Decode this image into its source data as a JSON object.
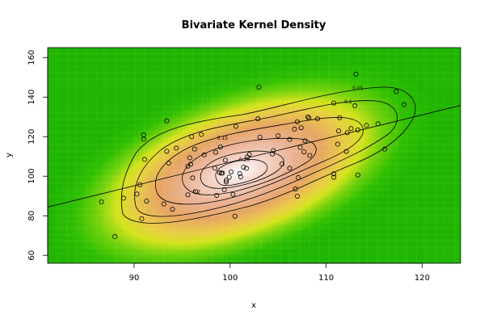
{
  "chart_data": {
    "type": "scatter",
    "title": "Bivariate Kernel Density",
    "xlabel": "x",
    "ylabel": "y",
    "xlim": [
      81,
      124
    ],
    "ylim": [
      56,
      165
    ],
    "x_ticks": [
      90,
      100,
      110,
      120
    ],
    "y_ticks": [
      60,
      80,
      100,
      120,
      140,
      160
    ],
    "grid": false,
    "regression_line": {
      "x": [
        81,
        124
      ],
      "y": [
        84.4,
        135.8
      ]
    },
    "contour_labels": [
      {
        "text": "0.05",
        "x": 113.3,
        "y": 144.5
      },
      {
        "text": "0.1",
        "x": 112.3,
        "y": 137.6
      },
      {
        "text": "0.15",
        "x": 99.2,
        "y": 119.3
      },
      {
        "text": "0.25",
        "x": 101.5,
        "y": 108.4
      },
      {
        "text": "0.2",
        "x": 96.5,
        "y": 92.2
      }
    ],
    "points": [
      {
        "x": 88.0,
        "y": 69.5
      },
      {
        "x": 86.6,
        "y": 87.0
      },
      {
        "x": 88.9,
        "y": 88.9
      },
      {
        "x": 90.3,
        "y": 91.0
      },
      {
        "x": 90.6,
        "y": 95.7
      },
      {
        "x": 90.8,
        "y": 78.5
      },
      {
        "x": 91.0,
        "y": 118.7
      },
      {
        "x": 91.0,
        "y": 120.9
      },
      {
        "x": 91.1,
        "y": 108.5
      },
      {
        "x": 91.3,
        "y": 87.4
      },
      {
        "x": 93.1,
        "y": 86.0
      },
      {
        "x": 93.4,
        "y": 128.0
      },
      {
        "x": 93.4,
        "y": 112.6
      },
      {
        "x": 93.6,
        "y": 106.6
      },
      {
        "x": 94.0,
        "y": 83.3
      },
      {
        "x": 94.4,
        "y": 114.2
      },
      {
        "x": 95.6,
        "y": 105.1
      },
      {
        "x": 95.6,
        "y": 90.6
      },
      {
        "x": 95.8,
        "y": 109.3
      },
      {
        "x": 95.9,
        "y": 106.1
      },
      {
        "x": 96.0,
        "y": 120.0
      },
      {
        "x": 96.1,
        "y": 99.1
      },
      {
        "x": 96.3,
        "y": 113.7
      },
      {
        "x": 96.4,
        "y": 92.2
      },
      {
        "x": 97.0,
        "y": 121.1
      },
      {
        "x": 97.3,
        "y": 110.8
      },
      {
        "x": 98.4,
        "y": 104.1
      },
      {
        "x": 98.5,
        "y": 112.1
      },
      {
        "x": 98.6,
        "y": 90.3
      },
      {
        "x": 98.9,
        "y": 101.8
      },
      {
        "x": 99.1,
        "y": 101.5
      },
      {
        "x": 99.0,
        "y": 114.8
      },
      {
        "x": 99.2,
        "y": 101.6
      },
      {
        "x": 99.4,
        "y": 93.2
      },
      {
        "x": 99.5,
        "y": 108.1
      },
      {
        "x": 99.6,
        "y": 98.0
      },
      {
        "x": 99.6,
        "y": 97.1
      },
      {
        "x": 99.9,
        "y": 99.5
      },
      {
        "x": 100.1,
        "y": 102.2
      },
      {
        "x": 100.3,
        "y": 90.8
      },
      {
        "x": 100.5,
        "y": 79.8
      },
      {
        "x": 100.6,
        "y": 125.2
      },
      {
        "x": 101.0,
        "y": 101.3
      },
      {
        "x": 101.1,
        "y": 99.7
      },
      {
        "x": 101.4,
        "y": 104.6
      },
      {
        "x": 101.7,
        "y": 104.0
      },
      {
        "x": 101.8,
        "y": 109.7
      },
      {
        "x": 102.0,
        "y": 111.0
      },
      {
        "x": 102.9,
        "y": 129.0
      },
      {
        "x": 103.0,
        "y": 145.0
      },
      {
        "x": 103.1,
        "y": 119.7
      },
      {
        "x": 104.4,
        "y": 111.2
      },
      {
        "x": 104.5,
        "y": 113.0
      },
      {
        "x": 105.0,
        "y": 120.5
      },
      {
        "x": 105.4,
        "y": 106.2
      },
      {
        "x": 106.2,
        "y": 104.0
      },
      {
        "x": 106.2,
        "y": 118.6
      },
      {
        "x": 106.7,
        "y": 123.8
      },
      {
        "x": 106.8,
        "y": 93.5
      },
      {
        "x": 107.0,
        "y": 89.9
      },
      {
        "x": 107.1,
        "y": 99.3
      },
      {
        "x": 107.0,
        "y": 127.5
      },
      {
        "x": 107.3,
        "y": 114.6
      },
      {
        "x": 107.4,
        "y": 124.5
      },
      {
        "x": 107.7,
        "y": 112.3
      },
      {
        "x": 107.8,
        "y": 117.9
      },
      {
        "x": 108.1,
        "y": 130.0
      },
      {
        "x": 108.2,
        "y": 129.4
      },
      {
        "x": 108.3,
        "y": 110.5
      },
      {
        "x": 109.1,
        "y": 129.0
      },
      {
        "x": 110.8,
        "y": 101.2
      },
      {
        "x": 110.8,
        "y": 99.5
      },
      {
        "x": 110.8,
        "y": 137.0
      },
      {
        "x": 111.2,
        "y": 116.2
      },
      {
        "x": 111.3,
        "y": 122.9
      },
      {
        "x": 111.4,
        "y": 129.6
      },
      {
        "x": 112.1,
        "y": 112.5
      },
      {
        "x": 112.2,
        "y": 122.0
      },
      {
        "x": 112.6,
        "y": 124.1
      },
      {
        "x": 113.0,
        "y": 135.6
      },
      {
        "x": 113.1,
        "y": 151.6
      },
      {
        "x": 113.3,
        "y": 100.6
      },
      {
        "x": 113.3,
        "y": 123.4
      },
      {
        "x": 114.2,
        "y": 125.7
      },
      {
        "x": 115.4,
        "y": 126.5
      },
      {
        "x": 116.1,
        "y": 113.7
      },
      {
        "x": 117.3,
        "y": 142.8
      },
      {
        "x": 118.1,
        "y": 136.2
      }
    ]
  }
}
